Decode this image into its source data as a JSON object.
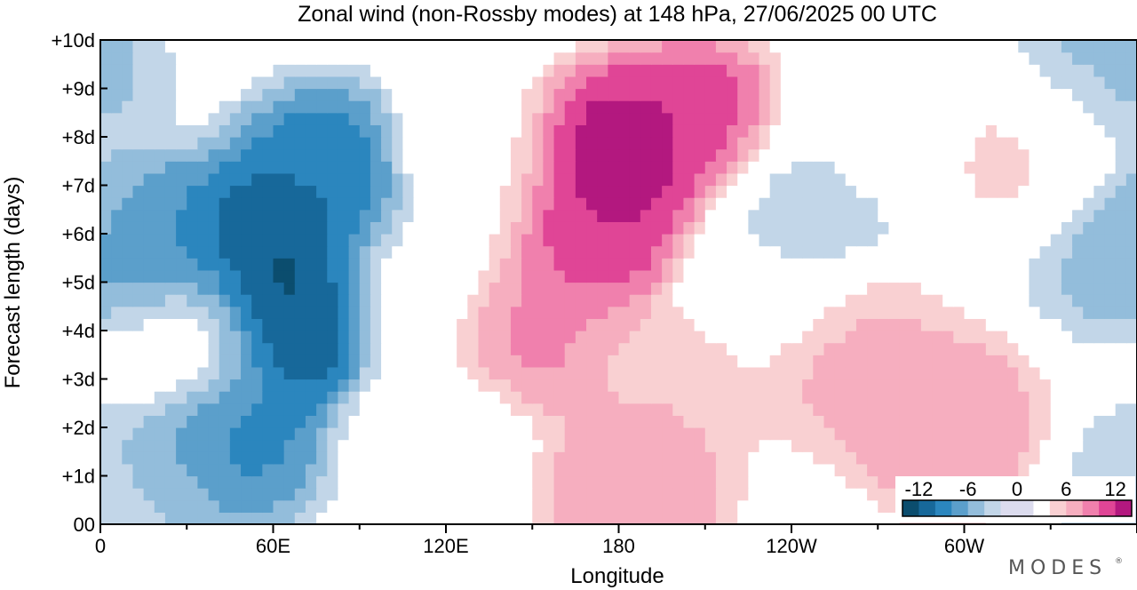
{
  "chart_data": {
    "type": "heatmap",
    "title": "Zonal wind (non-Rossby modes) at 148 hPa,  27/06/2025  00 UTC",
    "xlabel": "Longitude",
    "ylabel": "Forecast length (days)",
    "x_ticks": [
      "0",
      "60E",
      "120E",
      "180",
      "120W",
      "60W"
    ],
    "y_ticks": [
      "00",
      "+1d",
      "+2d",
      "+3d",
      "+4d",
      "+5d",
      "+6d",
      "+7d",
      "+8d",
      "+9d",
      "+10d"
    ],
    "xlim": [
      0,
      360
    ],
    "ylim": [
      0,
      10
    ],
    "colorbar": {
      "labels": [
        "-12",
        "-6",
        "0",
        "6",
        "12"
      ],
      "range": [
        -14,
        14
      ],
      "levels": [
        -14,
        -12,
        -10,
        -8,
        -6,
        -4,
        -2,
        2,
        4,
        6,
        8,
        10,
        12,
        14
      ],
      "colors": [
        "#0b4d6e",
        "#17689a",
        "#2b86be",
        "#5b9fcb",
        "#93bddb",
        "#c2d6e8",
        "#dcdcee",
        "#ffffff",
        "#f9d0d2",
        "#f6aebf",
        "#f080ad",
        "#e04596",
        "#b3187f",
        "#6e0c78"
      ]
    },
    "features": [
      {
        "lon": 60,
        "day": 5.5,
        "value": -13
      },
      {
        "lon": 65,
        "day": 4.2,
        "value": -13
      },
      {
        "lon": 20,
        "day": 5.5,
        "value": -9
      },
      {
        "lon": 45,
        "day": 2.0,
        "value": -9
      },
      {
        "lon": 80,
        "day": 7.0,
        "value": -10
      },
      {
        "lon": 180,
        "day": 7.5,
        "value": 14
      },
      {
        "lon": 174,
        "day": 6.2,
        "value": 12
      },
      {
        "lon": 207,
        "day": 8.0,
        "value": 12
      },
      {
        "lon": 145,
        "day": 4.0,
        "value": 9
      },
      {
        "lon": 185,
        "day": 0.8,
        "value": 8
      },
      {
        "lon": 200,
        "day": 3.0,
        "value": 6
      },
      {
        "lon": 258,
        "day": 3.5,
        "value": 7
      },
      {
        "lon": 293,
        "day": 2.1,
        "value": 8
      },
      {
        "lon": 10,
        "day": 0.6,
        "value": -4
      },
      {
        "lon": 30,
        "day": 3.8,
        "value": 2
      },
      {
        "lon": 110,
        "day": 5.0,
        "value": 0
      },
      {
        "lon": 230,
        "day": 5.0,
        "value": 0
      },
      {
        "lon": 240,
        "day": 6.5,
        "value": -5
      },
      {
        "lon": 323,
        "day": 7.8,
        "value": 5
      },
      {
        "lon": 355,
        "day": 6.0,
        "value": -5
      },
      {
        "lon": 345,
        "day": 9.2,
        "value": -5
      },
      {
        "lon": 115,
        "day": 2.0,
        "value": 0
      },
      {
        "lon": 130,
        "day": 7.5,
        "value": 3
      },
      {
        "lon": 270,
        "day": 8.5,
        "value": 2
      }
    ]
  },
  "branding": {
    "logo_text": "MODES",
    "trademark": "®"
  }
}
